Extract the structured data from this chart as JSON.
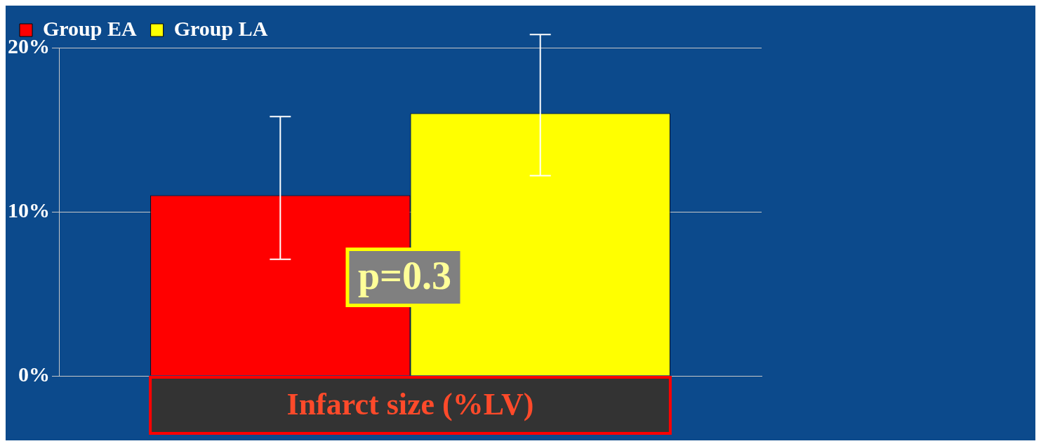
{
  "chart_data": {
    "type": "bar",
    "categories": [
      "Infarct size (%LV)"
    ],
    "series": [
      {
        "name": "Group EA",
        "color": "#ff0000",
        "values": [
          11
        ],
        "errors": [
          [
            7.1,
            15.8
          ]
        ]
      },
      {
        "name": "Group LA",
        "color": "#ffff00",
        "values": [
          16
        ],
        "errors": [
          [
            12.2,
            20.8
          ]
        ]
      }
    ],
    "ylim": [
      0,
      20
    ],
    "yticks": [
      {
        "value": 0,
        "label": "0%"
      },
      {
        "value": 10,
        "label": "10%"
      },
      {
        "value": 20,
        "label": "20%"
      }
    ],
    "grid": "y",
    "legend": "top",
    "annotations": [
      "p=0.3"
    ]
  }
}
